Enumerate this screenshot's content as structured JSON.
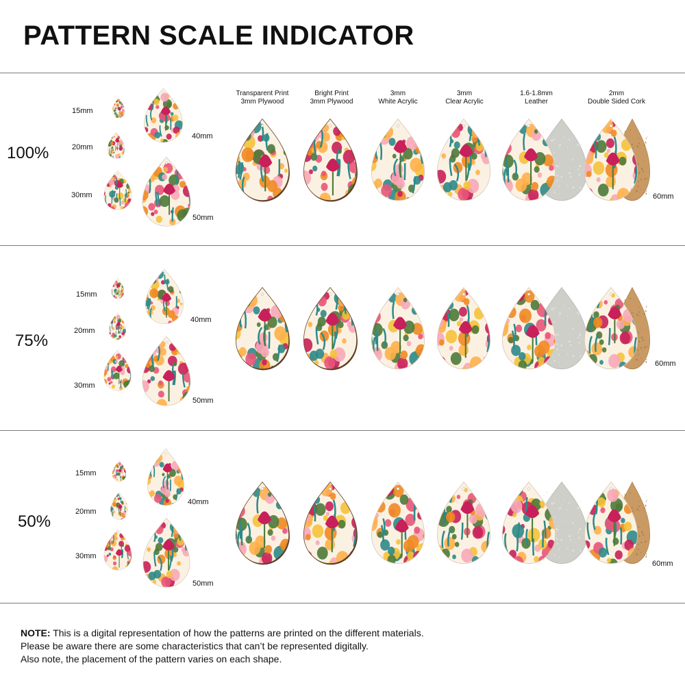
{
  "title": "PATTERN SCALE INDICATOR",
  "materials": [
    {
      "line1": "Transparent Print",
      "line2": "3mm Plywood"
    },
    {
      "line1": "Bright Print",
      "line2": "3mm Plywood"
    },
    {
      "line1": "3mm",
      "line2": "White Acrylic"
    },
    {
      "line1": "3mm",
      "line2": "Clear Acrylic"
    },
    {
      "line1": "1.6-1.8mm",
      "line2": "Leather"
    },
    {
      "line1": "2mm",
      "line2": "Double Sided Cork"
    }
  ],
  "sizes": {
    "s15": "15mm",
    "s20": "20mm",
    "s30": "30mm",
    "s40": "40mm",
    "s50": "50mm",
    "s60": "60mm"
  },
  "scales": [
    {
      "label": "100%"
    },
    {
      "label": "75%"
    },
    {
      "label": "50%"
    }
  ],
  "note": {
    "prefix": "NOTE:",
    "line1": " This is a digital representation of how the patterns are printed on the different materials.",
    "line2": "Please be aware there are some characteristics that can’t be represented digitally.",
    "line3": "Also note, the placement of the pattern varies on each shape."
  },
  "colors": {
    "pink": "#e8557a",
    "magenta": "#c8205a",
    "orange": "#f08a24",
    "yellow": "#f5c23a",
    "cream": "#fbf1e2",
    "teal": "#2d8a8a",
    "green": "#4c7a3a",
    "leather": "#cfcfca",
    "cork": "#c99a63"
  }
}
